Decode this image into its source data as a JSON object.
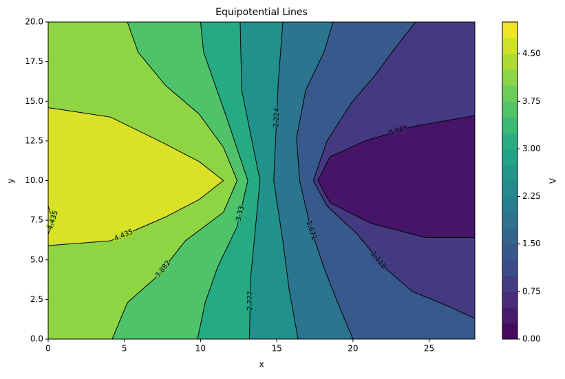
{
  "chart_data": {
    "type": "contour",
    "title": "Equipotential Lines",
    "xlabel": "x",
    "ylabel": "y",
    "xlim": [
      0,
      28
    ],
    "ylim": [
      0,
      20
    ],
    "xticks": [
      0,
      5,
      10,
      15,
      20,
      25
    ],
    "yticks": [
      {
        "value": 0,
        "label": "0.0"
      },
      {
        "value": 2.5,
        "label": "2.5"
      },
      {
        "value": 5,
        "label": "5.0"
      },
      {
        "value": 7.5,
        "label": "7.5"
      },
      {
        "value": 10,
        "label": "10.0"
      },
      {
        "value": 12.5,
        "label": "12.5"
      },
      {
        "value": 15,
        "label": "15.0"
      },
      {
        "value": 17.5,
        "label": "17.5"
      },
      {
        "value": 20,
        "label": "20.0"
      }
    ],
    "colormap": "viridis",
    "line_color": "#000000",
    "colorbar": {
      "label": "V",
      "lim": [
        0,
        5
      ],
      "ticks": [
        {
          "value": 0,
          "label": "0.00"
        },
        {
          "value": 0.75,
          "label": "0.75"
        },
        {
          "value": 1.5,
          "label": "1.50"
        },
        {
          "value": 2.25,
          "label": "2.25"
        },
        {
          "value": 3,
          "label": "3.00"
        },
        {
          "value": 3.75,
          "label": "3.75"
        },
        {
          "value": 4.5,
          "label": "4.50"
        }
      ]
    },
    "contours": [
      {
        "level": 0.565,
        "x": [
          28,
          23.9,
          20.8,
          18.5,
          17.7,
          18.5,
          21.2,
          24.8,
          28
        ],
        "y": [
          14.1,
          13.4,
          12.5,
          11.5,
          10,
          8.6,
          7.3,
          6.4,
          6.4
        ]
      },
      {
        "level": 1.118,
        "x": [
          24.1,
          22.8,
          21.5,
          19.9,
          18.3,
          17.4,
          18.3,
          20.3,
          22.1,
          23.9,
          26.2,
          28
        ],
        "y": [
          20,
          18.4,
          16.7,
          14.9,
          12.5,
          10,
          8.4,
          6.6,
          4.5,
          3.0,
          2.1,
          1.3
        ]
      },
      {
        "level": 1.671,
        "x": [
          18.7,
          18.1,
          16.9,
          16.3,
          16.5,
          17.2,
          18.1,
          19.0,
          20.0
        ],
        "y": [
          20,
          18.1,
          15.7,
          12.7,
          10,
          7.1,
          4.5,
          2.3,
          0
        ]
      },
      {
        "level": 2.224,
        "x": [
          15.4,
          15.1,
          14.8,
          15.4,
          15.8,
          16.4
        ],
        "y": [
          20,
          16.2,
          10,
          6.2,
          3.2,
          0
        ]
      },
      {
        "level": 2.777,
        "x": [
          12.6,
          12.7,
          13.9,
          13.3,
          13.2
        ],
        "y": [
          20,
          15.7,
          10,
          4.0,
          0
        ]
      },
      {
        "level": 3.33,
        "x": [
          10.0,
          10.2,
          11.7,
          13.1,
          12.4,
          11.1,
          10.3,
          9.8
        ],
        "y": [
          20,
          18.1,
          14.0,
          10,
          7.1,
          4.5,
          2.3,
          0
        ]
      },
      {
        "level": 3.882,
        "x": [
          5.2,
          5.9,
          7.7,
          9.9,
          11.5,
          12.4,
          11.5,
          9.0,
          7.2,
          5.2,
          4.2
        ],
        "y": [
          20,
          18.1,
          16.0,
          14.2,
          12.1,
          10,
          8.0,
          6.2,
          4.0,
          2.3,
          0
        ]
      },
      {
        "level": 4.435,
        "x": [
          0,
          4.1,
          7.7,
          9.9,
          11.5,
          9.9,
          7.7,
          4.1,
          0
        ],
        "y": [
          14.6,
          14.0,
          12.3,
          11.2,
          10,
          8.8,
          7.7,
          6.2,
          5.9
        ]
      },
      {
        "level": 4.435,
        "x": [
          0,
          0.3,
          0
        ],
        "y": [
          6.6,
          7.5,
          8.4
        ]
      }
    ]
  }
}
